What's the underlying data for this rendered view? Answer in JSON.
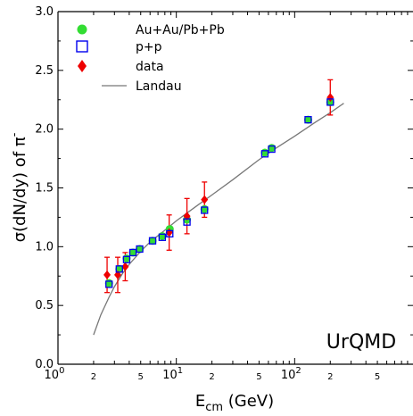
{
  "chart_data": {
    "type": "scatter",
    "xscale": "log",
    "xlim": [
      1,
      1000
    ],
    "ylim": [
      0.0,
      3.0
    ],
    "xlabel_main": "E",
    "xlabel_sub": "cm",
    "xlabel_unit": " (GeV)",
    "ylabel_prefix": "σ(dN/dy) of π",
    "ylabel_sup": "-",
    "x_tick_labels": [
      {
        "x": 1,
        "base": "10",
        "exp": "0"
      },
      {
        "x": 10,
        "base": "10",
        "exp": "1"
      },
      {
        "x": 100,
        "base": "10",
        "exp": "2"
      }
    ],
    "x_minor_labels": [
      {
        "x": 2,
        "label": "2"
      },
      {
        "x": 5,
        "label": "5"
      },
      {
        "x": 20,
        "label": "2"
      },
      {
        "x": 50,
        "label": "5"
      },
      {
        "x": 200,
        "label": "2"
      },
      {
        "x": 500,
        "label": "5"
      }
    ],
    "y_ticks": [
      {
        "y": 0.0,
        "label": "0.0"
      },
      {
        "y": 0.5,
        "label": "0.5"
      },
      {
        "y": 1.0,
        "label": "1.0"
      },
      {
        "y": 1.5,
        "label": "1.5"
      },
      {
        "y": 2.0,
        "label": "2.0"
      },
      {
        "y": 2.5,
        "label": "2.5"
      },
      {
        "y": 3.0,
        "label": "3.0"
      }
    ],
    "legend": [
      {
        "label": "Au+Au/Pb+Pb",
        "marker": "circle",
        "color": "#33dd33"
      },
      {
        "label": "p+p",
        "marker": "open-square",
        "color": "#0000ee"
      },
      {
        "label": "data",
        "marker": "diamond",
        "color": "#ee0000"
      },
      {
        "label": "Landau",
        "marker": "line",
        "color": "#777777"
      }
    ],
    "annotation": "UrQMD",
    "series": [
      {
        "name": "Au+Au/Pb+Pb",
        "points": [
          {
            "x": 2.7,
            "y": 0.69
          },
          {
            "x": 3.3,
            "y": 0.81
          },
          {
            "x": 3.8,
            "y": 0.9
          },
          {
            "x": 4.3,
            "y": 0.95
          },
          {
            "x": 4.9,
            "y": 0.98
          },
          {
            "x": 6.3,
            "y": 1.05
          },
          {
            "x": 7.6,
            "y": 1.09
          },
          {
            "x": 8.8,
            "y": 1.15
          },
          {
            "x": 12.3,
            "y": 1.23
          },
          {
            "x": 17.3,
            "y": 1.32
          },
          {
            "x": 56,
            "y": 1.8
          },
          {
            "x": 64,
            "y": 1.84
          },
          {
            "x": 130,
            "y": 2.08
          },
          {
            "x": 200,
            "y": 2.23
          }
        ]
      },
      {
        "name": "p+p",
        "points": [
          {
            "x": 2.7,
            "y": 0.68
          },
          {
            "x": 3.3,
            "y": 0.81
          },
          {
            "x": 3.8,
            "y": 0.89
          },
          {
            "x": 4.3,
            "y": 0.95
          },
          {
            "x": 4.9,
            "y": 0.98
          },
          {
            "x": 6.3,
            "y": 1.05
          },
          {
            "x": 7.6,
            "y": 1.08
          },
          {
            "x": 8.8,
            "y": 1.11
          },
          {
            "x": 12.3,
            "y": 1.21
          },
          {
            "x": 17.3,
            "y": 1.31
          },
          {
            "x": 56,
            "y": 1.79
          },
          {
            "x": 64,
            "y": 1.83
          },
          {
            "x": 130,
            "y": 2.08
          },
          {
            "x": 200,
            "y": 2.23
          }
        ]
      },
      {
        "name": "data",
        "points": [
          {
            "x": 2.6,
            "y": 0.76,
            "err": 0.15
          },
          {
            "x": 3.2,
            "y": 0.76,
            "err": 0.15
          },
          {
            "x": 3.7,
            "y": 0.83,
            "err": 0.12
          },
          {
            "x": 8.7,
            "y": 1.12,
            "err": 0.15
          },
          {
            "x": 12.3,
            "y": 1.26,
            "err": 0.15
          },
          {
            "x": 17.3,
            "y": 1.4,
            "err": 0.15
          },
          {
            "x": 200,
            "y": 2.27,
            "err": 0.15
          }
        ]
      },
      {
        "name": "Landau",
        "curve": [
          {
            "x": 2.0,
            "y": 0.25
          },
          {
            "x": 2.3,
            "y": 0.42
          },
          {
            "x": 2.7,
            "y": 0.57
          },
          {
            "x": 3.0,
            "y": 0.66
          },
          {
            "x": 3.5,
            "y": 0.77
          },
          {
            "x": 4.0,
            "y": 0.85
          },
          {
            "x": 5.0,
            "y": 0.96
          },
          {
            "x": 6.0,
            "y": 1.04
          },
          {
            "x": 8.0,
            "y": 1.14
          },
          {
            "x": 10,
            "y": 1.22
          },
          {
            "x": 15,
            "y": 1.35
          },
          {
            "x": 20,
            "y": 1.44
          },
          {
            "x": 30,
            "y": 1.57
          },
          {
            "x": 50,
            "y": 1.74
          },
          {
            "x": 70,
            "y": 1.84
          },
          {
            "x": 100,
            "y": 1.94
          },
          {
            "x": 150,
            "y": 2.06
          },
          {
            "x": 200,
            "y": 2.14
          },
          {
            "x": 260,
            "y": 2.22
          }
        ]
      }
    ]
  }
}
